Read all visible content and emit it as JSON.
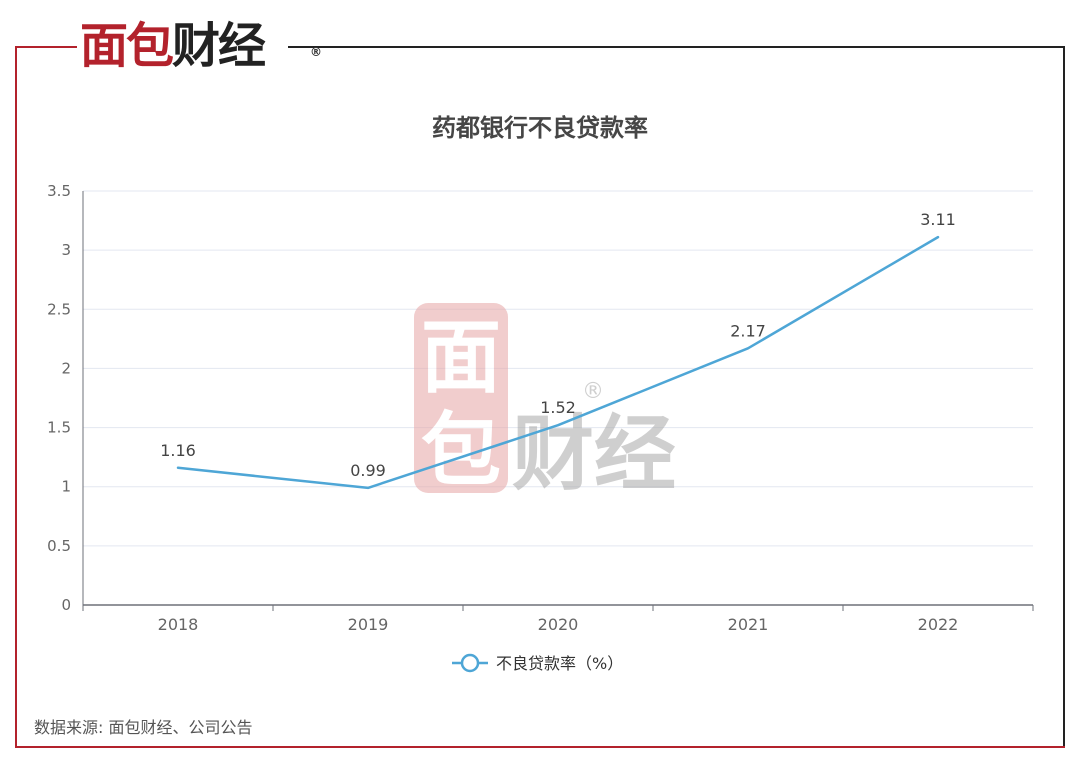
{
  "brand": {
    "logo_text": "面包财经",
    "logo_red": "面包",
    "logo_dark": "财经",
    "registered_mark": "®",
    "watermark_text": "面包财经"
  },
  "colors": {
    "frame_red": "#b3222c",
    "frame_dark": "#222222",
    "series_line": "#4ea6d6",
    "grid": "#e3e7f0"
  },
  "chart_data": {
    "type": "line",
    "title": "药都银行不良贷款率",
    "categories": [
      "2018",
      "2019",
      "2020",
      "2021",
      "2022"
    ],
    "series": [
      {
        "name": "不良贷款率（%）",
        "values": [
          1.16,
          0.99,
          1.52,
          2.17,
          3.11
        ]
      }
    ],
    "data_labels": [
      "1.16",
      "0.99",
      "1.52",
      "2.17",
      "3.11"
    ],
    "y_ticks": [
      "0",
      "0.5",
      "1",
      "1.5",
      "2",
      "2.5",
      "3",
      "3.5"
    ],
    "ylim": [
      0,
      3.5
    ],
    "grid": true,
    "legend_position": "bottom-center",
    "xlabel": "",
    "ylabel": ""
  },
  "source": "数据来源: 面包财经、公司公告"
}
